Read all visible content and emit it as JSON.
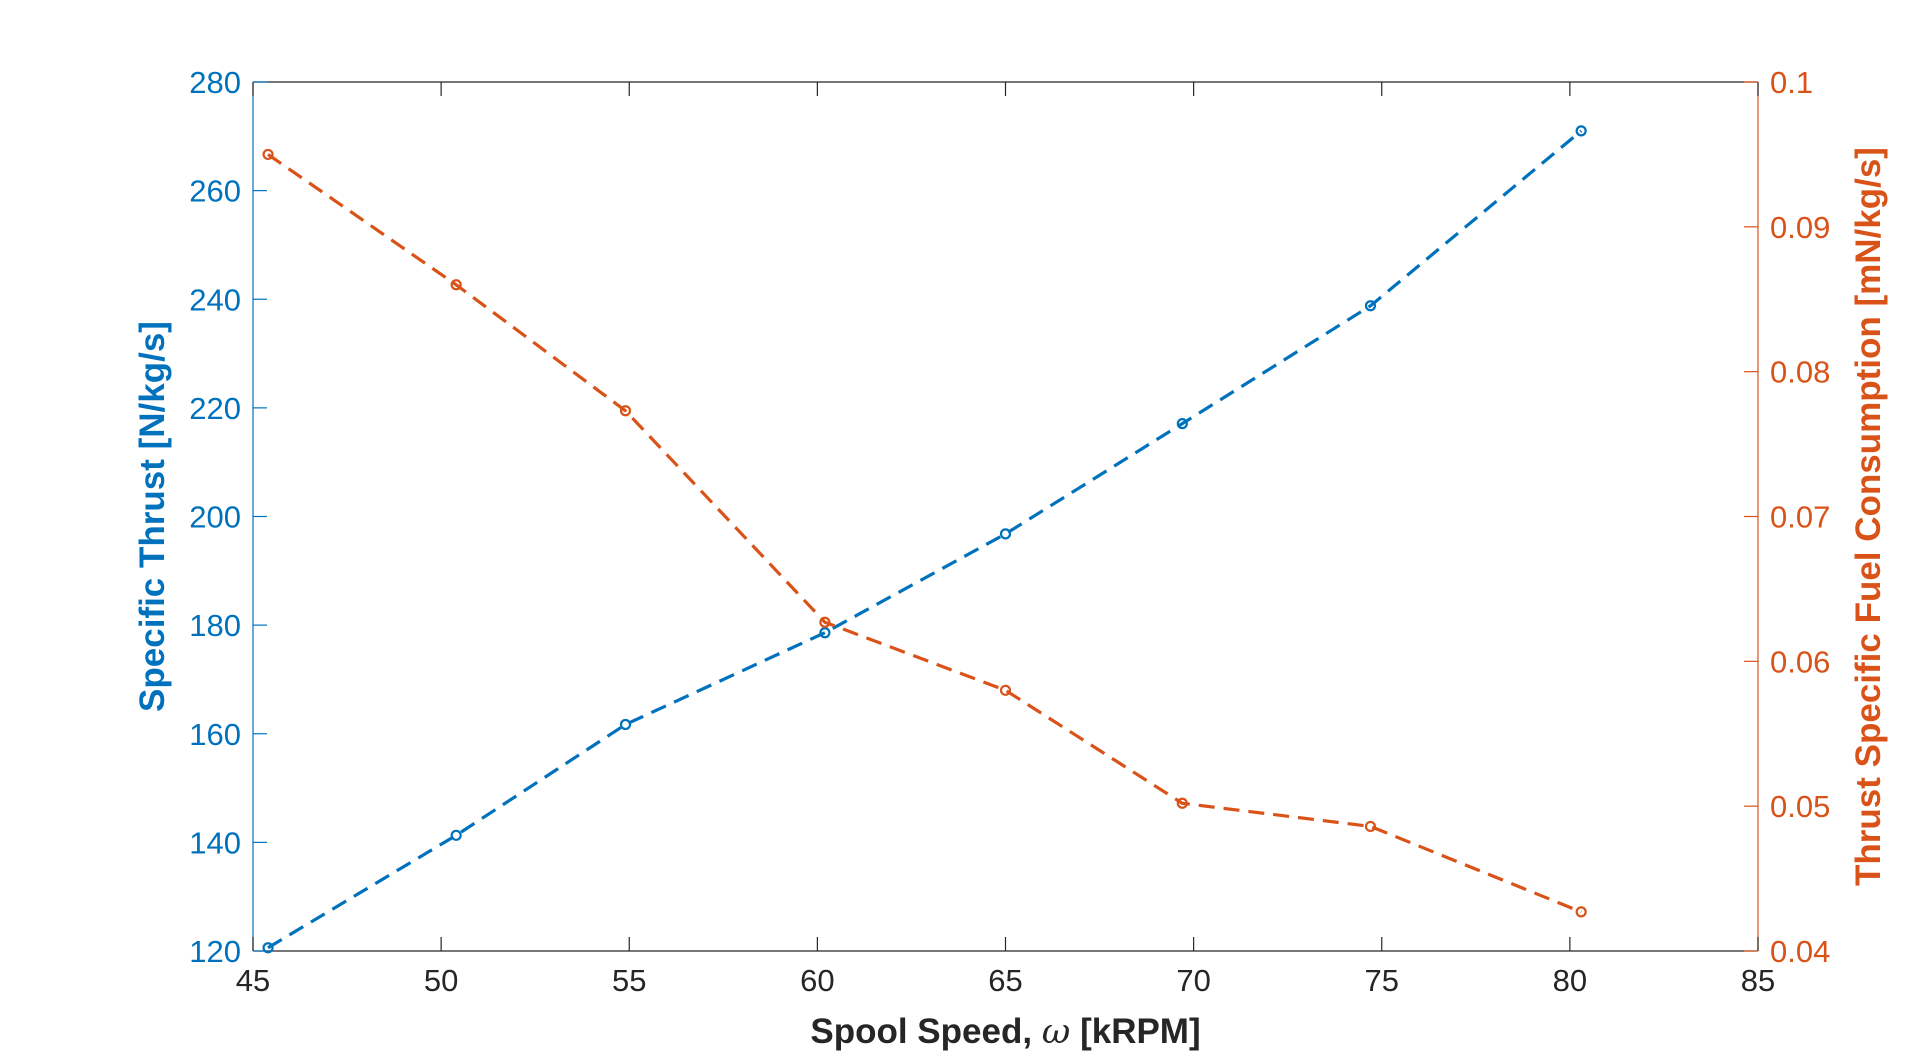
{
  "chart_data": {
    "type": "line",
    "title": "",
    "xlabel": "Spool Speed, ω [kRPM]",
    "xlabel_parts": {
      "before": "Spool Speed, ",
      "symbol": "ω",
      "after": " [kRPM]"
    },
    "ylabel_left": "Specific Thrust [N/kg/s]",
    "ylabel_right": "Thrust Specific Fuel Consumption [mN/kg/s]",
    "xlim": [
      45,
      85
    ],
    "ylim_left": [
      120,
      280
    ],
    "ylim_right": [
      0.04,
      0.1
    ],
    "xticks": [
      "45",
      "50",
      "55",
      "60",
      "65",
      "70",
      "75",
      "80",
      "85"
    ],
    "yticks_left": [
      "120",
      "140",
      "160",
      "180",
      "200",
      "220",
      "240",
      "260",
      "280"
    ],
    "yticks_right": [
      "0.04",
      "0.05",
      "0.06",
      "0.07",
      "0.08",
      "0.09",
      "0.1"
    ],
    "grid": false,
    "legend": "none",
    "series": [
      {
        "axis": "left",
        "color": "#0072BD",
        "line_style": "dashed",
        "marker": "circle",
        "x": [
          45.4,
          50.4,
          54.9,
          60.2,
          65.0,
          69.7,
          74.7,
          80.3
        ],
        "values": [
          120.6,
          141.3,
          161.7,
          178.6,
          196.8,
          217.1,
          238.8,
          271.0
        ]
      },
      {
        "axis": "right",
        "color": "#D95319",
        "line_style": "dashed",
        "marker": "circle",
        "x": [
          45.4,
          50.4,
          54.9,
          60.2,
          65.0,
          69.7,
          74.7,
          80.3
        ],
        "values": [
          0.095,
          0.086,
          0.0773,
          0.0627,
          0.058,
          0.0502,
          0.0486,
          0.0427
        ]
      }
    ],
    "colors": {
      "axis_box": "#262626",
      "left_axis": "#0072BD",
      "right_axis": "#D95319"
    }
  }
}
